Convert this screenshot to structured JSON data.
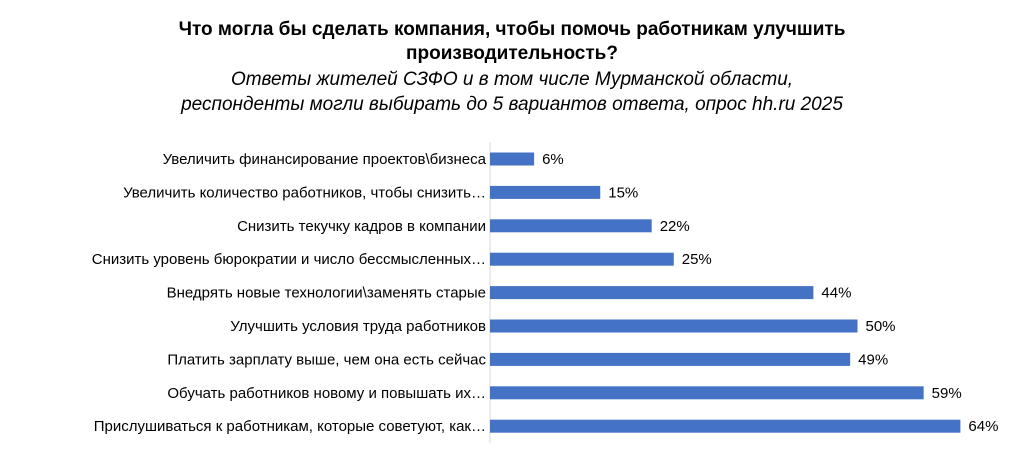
{
  "chart_data": {
    "type": "bar",
    "orientation": "horizontal",
    "title_line1": "Что могла бы сделать компания, чтобы помочь работникам улучшить",
    "title_line2": "производительность?",
    "subtitle_line1": "Ответы жителей СЗФО и в том числе Мурманской области,",
    "subtitle_line2": "респонденты могли выбирать до 5 вариантов ответа, опрос hh.ru 2025",
    "categories": [
      "Увеличить финансирование проектов\\бизнеса",
      "Увеличить количество работников, чтобы снизить…",
      "Снизить текучку кадров в компании",
      "Снизить уровень бюрократии и число бессмысленных…",
      "Внедрять новые технологии\\заменять старые",
      "Улучшить  условия труда работников",
      "Платить  зарплату  выше, чем она есть сейчас",
      "Обучать работников новому и повышать их…",
      "Прислушиваться  к работникам,  которые советуют, как…"
    ],
    "values": [
      6,
      15,
      22,
      25,
      44,
      50,
      49,
      59,
      64
    ],
    "value_labels": [
      "6%",
      "15%",
      "22%",
      "25%",
      "44%",
      "50%",
      "49%",
      "59%",
      "64%"
    ],
    "unit": "%",
    "bar_color": "#4472c4",
    "grid": false,
    "legend": "none"
  }
}
